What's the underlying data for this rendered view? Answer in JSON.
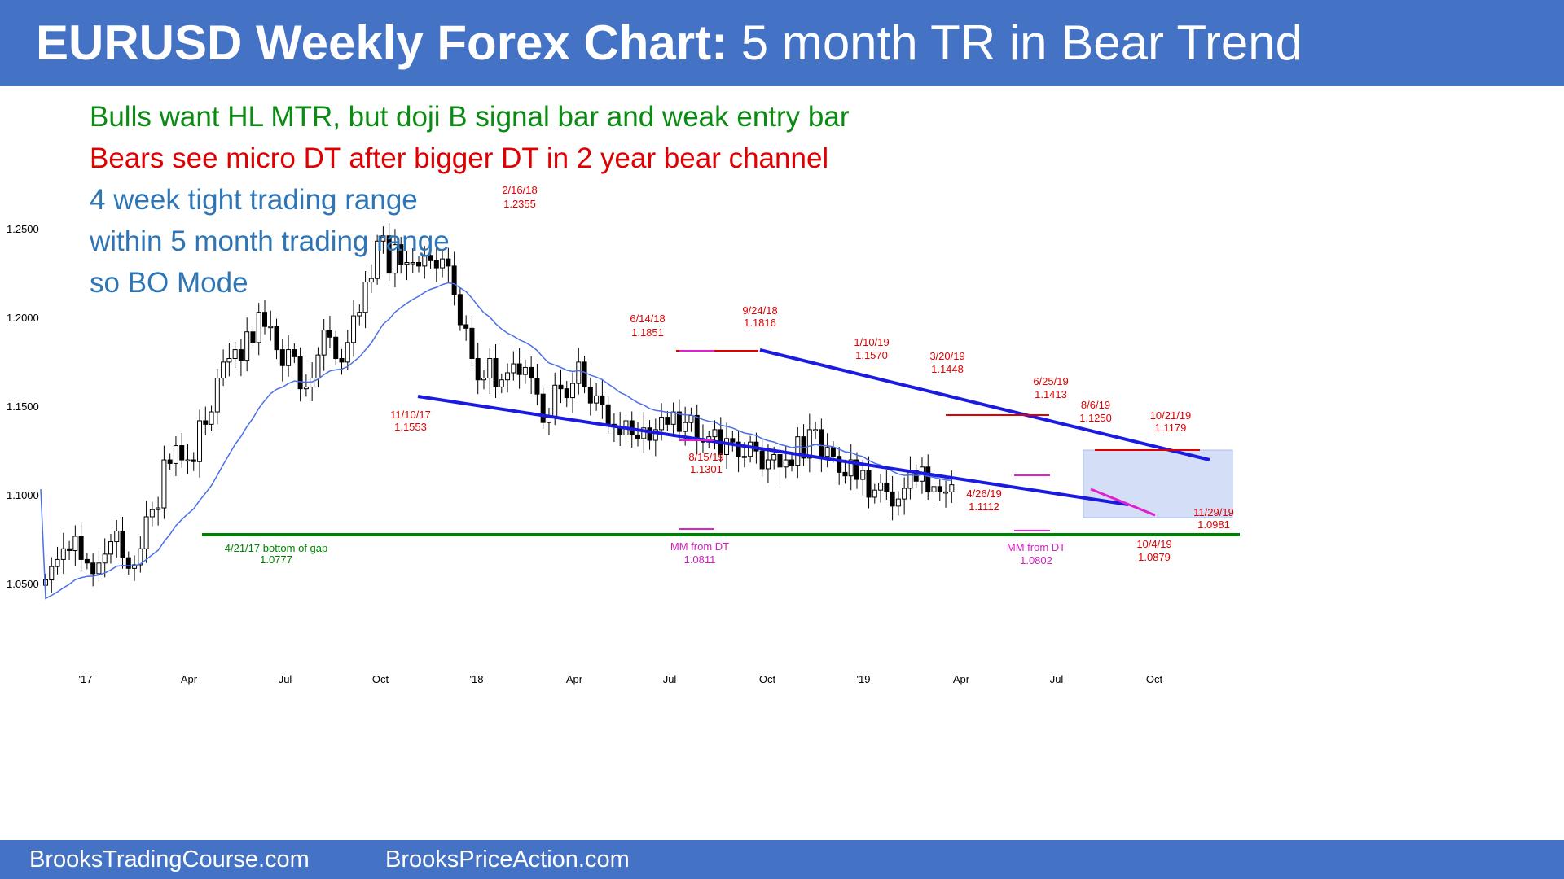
{
  "header": {
    "title_bold": "EURUSD Weekly Forex Chart:",
    "title_rest": "5 month TR in Bear Trend"
  },
  "footer": {
    "left": "BrooksTradingCourse.com",
    "right": "BrooksPriceAction.com"
  },
  "notes": [
    {
      "text": "Bulls want HL MTR, but doji B signal bar and weak entry bar",
      "color": "#0b8a14"
    },
    {
      "text": "Bears see micro DT after bigger DT in 2 year bear channel",
      "color": "#e00000"
    },
    {
      "text": "4 week tight trading range",
      "color": "#2e75b6"
    },
    {
      "text": "within 5 month trading range",
      "color": "#2e75b6"
    },
    {
      "text": "so BO Mode",
      "color": "#2e75b6"
    }
  ],
  "colors": {
    "bull_body": "#ffffff",
    "bear_body": "#000000",
    "ema": "#4a6fe8",
    "channel": "#1a1ae0",
    "resistance": "#e00000",
    "magenta": "#e020d0",
    "support": "#008000",
    "box": "#a9bff0",
    "red_text": "#e00000",
    "magenta_text": "#d020c0",
    "green_text": "#008000"
  },
  "chart_data": {
    "type": "candlestick",
    "title": "EURUSD Weekly Forex Chart: 5 month TR in Bear Trend",
    "y_ticks": [
      "1.2500",
      "1.2000",
      "1.1500",
      "1.1000",
      "1.0500"
    ],
    "x_ticks": [
      "'17",
      "Apr",
      "Jul",
      "Oct",
      "'18",
      "Apr",
      "Jul",
      "Oct",
      "'19",
      "Apr",
      "Jul",
      "Oct"
    ],
    "ylim": [
      1.025,
      1.265
    ],
    "grid": false,
    "moving_average": "20-week EMA",
    "key_points": [
      {
        "date": "12/30/16",
        "close": 1.0525
      },
      {
        "date": "1/6/17",
        "close": 1.06
      },
      {
        "date": "1/13/17",
        "close": 1.064
      },
      {
        "date": "1/20/17",
        "close": 1.07
      },
      {
        "date": "1/27/17",
        "close": 1.069
      },
      {
        "date": "2/3/17",
        "close": 1.077
      },
      {
        "date": "2/10/17",
        "close": 1.064
      },
      {
        "date": "2/17/17",
        "close": 1.062
      },
      {
        "date": "2/24/17",
        "close": 1.056
      },
      {
        "date": "3/3/17",
        "close": 1.062
      },
      {
        "date": "3/10/17",
        "close": 1.067
      },
      {
        "date": "3/17/17",
        "close": 1.074
      },
      {
        "date": "3/24/17",
        "close": 1.08
      },
      {
        "date": "3/31/17",
        "close": 1.065
      },
      {
        "date": "4/7/17",
        "close": 1.059
      },
      {
        "date": "4/14/17",
        "close": 1.061
      },
      {
        "date": "4/21/17",
        "close": 1.07
      },
      {
        "date": "4/28/17",
        "close": 1.088
      },
      {
        "date": "5/5/17",
        "close": 1.092
      },
      {
        "date": "5/12/17",
        "close": 1.093
      },
      {
        "date": "5/19/17",
        "close": 1.12
      },
      {
        "date": "5/26/17",
        "close": 1.118
      },
      {
        "date": "6/2/17",
        "close": 1.128
      },
      {
        "date": "6/9/17",
        "close": 1.12
      },
      {
        "date": "6/16/17",
        "close": 1.12
      },
      {
        "date": "6/23/17",
        "close": 1.119
      },
      {
        "date": "6/30/17",
        "close": 1.142
      },
      {
        "date": "7/7/17",
        "close": 1.14
      },
      {
        "date": "7/14/17",
        "close": 1.147
      },
      {
        "date": "7/21/17",
        "close": 1.166
      },
      {
        "date": "7/28/17",
        "close": 1.175
      },
      {
        "date": "8/4/17",
        "close": 1.177
      },
      {
        "date": "8/11/17",
        "close": 1.182
      },
      {
        "date": "8/18/17",
        "close": 1.176
      },
      {
        "date": "8/25/17",
        "close": 1.192
      },
      {
        "date": "9/1/17",
        "close": 1.186
      },
      {
        "date": "9/8/17",
        "close": 1.203
      },
      {
        "date": "9/15/17",
        "close": 1.195
      },
      {
        "date": "9/22/17",
        "close": 1.195
      },
      {
        "date": "9/29/17",
        "close": 1.182
      },
      {
        "date": "10/6/17",
        "close": 1.173
      },
      {
        "date": "10/13/17",
        "close": 1.182
      },
      {
        "date": "10/20/17",
        "close": 1.178
      },
      {
        "date": "10/27/17",
        "close": 1.16
      },
      {
        "date": "11/3/17",
        "close": 1.161
      },
      {
        "date": "11/10/17",
        "close": 1.166
      },
      {
        "date": "11/17/17",
        "close": 1.179
      },
      {
        "date": "11/24/17",
        "close": 1.193
      },
      {
        "date": "12/1/17",
        "close": 1.189
      },
      {
        "date": "12/8/17",
        "close": 1.177
      },
      {
        "date": "12/15/17",
        "close": 1.175
      },
      {
        "date": "12/22/17",
        "close": 1.186
      },
      {
        "date": "12/29/17",
        "close": 1.201
      },
      {
        "date": "1/5/18",
        "close": 1.203
      },
      {
        "date": "1/12/18",
        "close": 1.22
      },
      {
        "date": "1/19/18",
        "close": 1.222
      },
      {
        "date": "1/26/18",
        "close": 1.243
      },
      {
        "date": "2/2/18",
        "close": 1.246
      },
      {
        "date": "2/9/18",
        "close": 1.225
      },
      {
        "date": "2/16/18",
        "close": 1.241
      },
      {
        "date": "2/23/18",
        "close": 1.23
      },
      {
        "date": "3/2/18",
        "close": 1.231
      },
      {
        "date": "3/9/18",
        "close": 1.231
      },
      {
        "date": "3/16/18",
        "close": 1.229
      },
      {
        "date": "3/23/18",
        "close": 1.235
      },
      {
        "date": "3/30/18",
        "close": 1.232
      },
      {
        "date": "4/6/18",
        "close": 1.228
      },
      {
        "date": "4/13/18",
        "close": 1.233
      },
      {
        "date": "4/20/18",
        "close": 1.229
      },
      {
        "date": "4/27/18",
        "close": 1.213
      },
      {
        "date": "5/4/18",
        "close": 1.196
      },
      {
        "date": "5/11/18",
        "close": 1.194
      },
      {
        "date": "5/18/18",
        "close": 1.177
      },
      {
        "date": "5/25/18",
        "close": 1.165
      },
      {
        "date": "6/1/18",
        "close": 1.166
      },
      {
        "date": "6/8/18",
        "close": 1.177
      },
      {
        "date": "6/15/18",
        "close": 1.161
      },
      {
        "date": "6/22/18",
        "close": 1.165
      },
      {
        "date": "6/29/18",
        "close": 1.169
      },
      {
        "date": "7/6/18",
        "close": 1.174
      },
      {
        "date": "7/13/18",
        "close": 1.168
      },
      {
        "date": "7/20/18",
        "close": 1.172
      },
      {
        "date": "7/27/18",
        "close": 1.166
      },
      {
        "date": "8/3/18",
        "close": 1.157
      },
      {
        "date": "8/10/18",
        "close": 1.141
      },
      {
        "date": "8/17/18",
        "close": 1.144
      },
      {
        "date": "8/24/18",
        "close": 1.162
      },
      {
        "date": "8/31/18",
        "close": 1.16
      },
      {
        "date": "9/7/18",
        "close": 1.155
      },
      {
        "date": "9/14/18",
        "close": 1.163
      },
      {
        "date": "9/21/18",
        "close": 1.175
      },
      {
        "date": "9/28/18",
        "close": 1.161
      },
      {
        "date": "10/5/18",
        "close": 1.152
      },
      {
        "date": "10/12/18",
        "close": 1.156
      },
      {
        "date": "10/19/18",
        "close": 1.151
      },
      {
        "date": "10/26/18",
        "close": 1.14
      },
      {
        "date": "11/2/18",
        "close": 1.139
      },
      {
        "date": "11/9/18",
        "close": 1.134
      },
      {
        "date": "11/16/18",
        "close": 1.142
      },
      {
        "date": "11/23/18",
        "close": 1.134
      },
      {
        "date": "11/30/18",
        "close": 1.132
      },
      {
        "date": "12/7/18",
        "close": 1.138
      },
      {
        "date": "12/14/18",
        "close": 1.131
      },
      {
        "date": "12/21/18",
        "close": 1.137
      },
      {
        "date": "12/28/18",
        "close": 1.144
      },
      {
        "date": "1/4/19",
        "close": 1.14
      },
      {
        "date": "1/11/19",
        "close": 1.147
      },
      {
        "date": "1/18/19",
        "close": 1.136
      },
      {
        "date": "1/25/19",
        "close": 1.141
      },
      {
        "date": "2/1/19",
        "close": 1.145
      },
      {
        "date": "2/8/19",
        "close": 1.132
      },
      {
        "date": "2/15/19",
        "close": 1.13
      },
      {
        "date": "2/22/19",
        "close": 1.133
      },
      {
        "date": "3/1/19",
        "close": 1.137
      },
      {
        "date": "3/8/19",
        "close": 1.123
      },
      {
        "date": "3/15/19",
        "close": 1.132
      },
      {
        "date": "3/22/19",
        "close": 1.13
      },
      {
        "date": "3/29/19",
        "close": 1.122
      },
      {
        "date": "4/5/19",
        "close": 1.122
      },
      {
        "date": "4/12/19",
        "close": 1.13
      },
      {
        "date": "4/19/19",
        "close": 1.125
      },
      {
        "date": "4/26/19",
        "close": 1.115
      },
      {
        "date": "5/3/19",
        "close": 1.12
      },
      {
        "date": "5/10/19",
        "close": 1.123
      },
      {
        "date": "5/17/19",
        "close": 1.116
      },
      {
        "date": "5/24/19",
        "close": 1.12
      },
      {
        "date": "5/31/19",
        "close": 1.117
      },
      {
        "date": "6/7/19",
        "close": 1.133
      },
      {
        "date": "6/14/19",
        "close": 1.121
      },
      {
        "date": "6/21/19",
        "close": 1.137
      },
      {
        "date": "6/28/19",
        "close": 1.137
      },
      {
        "date": "7/5/19",
        "close": 1.122
      },
      {
        "date": "7/12/19",
        "close": 1.127
      },
      {
        "date": "7/19/19",
        "close": 1.122
      },
      {
        "date": "7/26/19",
        "close": 1.113
      },
      {
        "date": "8/2/19",
        "close": 1.111
      },
      {
        "date": "8/9/19",
        "close": 1.12
      },
      {
        "date": "8/16/19",
        "close": 1.109
      },
      {
        "date": "8/23/19",
        "close": 1.114
      },
      {
        "date": "8/30/19",
        "close": 1.099
      },
      {
        "date": "9/6/19",
        "close": 1.103
      },
      {
        "date": "9/13/19",
        "close": 1.107
      },
      {
        "date": "9/20/19",
        "close": 1.102
      },
      {
        "date": "9/27/19",
        "close": 1.094
      },
      {
        "date": "10/4/19",
        "close": 1.098
      },
      {
        "date": "10/11/19",
        "close": 1.104
      },
      {
        "date": "10/18/19",
        "close": 1.114
      },
      {
        "date": "10/25/19",
        "close": 1.108
      },
      {
        "date": "11/1/19",
        "close": 1.116
      },
      {
        "date": "11/8/19",
        "close": 1.102
      },
      {
        "date": "11/15/19",
        "close": 1.105
      },
      {
        "date": "11/22/19",
        "close": 1.102
      },
      {
        "date": "11/29/19",
        "close": 1.102
      },
      {
        "date": "12/6/19",
        "close": 1.106
      }
    ],
    "annotations": [
      {
        "date": "2/16/18",
        "price": "1.2355",
        "color": "red"
      },
      {
        "date": "6/14/18",
        "price": "1.1851",
        "color": "red"
      },
      {
        "date": "9/24/18",
        "price": "1.1816",
        "color": "red"
      },
      {
        "date": "1/10/19",
        "price": "1.1570",
        "color": "red"
      },
      {
        "date": "3/20/19",
        "price": "1.1448",
        "color": "red"
      },
      {
        "date": "6/25/19",
        "price": "1.1413",
        "color": "red"
      },
      {
        "date": "8/6/19",
        "price": "1.1250",
        "color": "red"
      },
      {
        "date": "10/21/19",
        "price": "1.1179",
        "color": "red"
      },
      {
        "date": "11/10/17",
        "price": "1.1553",
        "color": "red"
      },
      {
        "date": "8/15/19",
        "price": "1.1301",
        "color": "red"
      },
      {
        "date": "4/26/19",
        "price": "1.1112",
        "color": "red"
      },
      {
        "date": "11/29/19",
        "price": "1.0981",
        "color": "red"
      },
      {
        "date": "10/4/19",
        "price": "1.0879",
        "color": "red"
      },
      {
        "date": "4/21/17 bottom of gap",
        "price": "1.0777",
        "color": "green"
      },
      {
        "date": "MM from DT",
        "price": "1.0811",
        "color": "magenta"
      },
      {
        "date": "MM from DT",
        "price": "1.0802",
        "color": "magenta"
      }
    ]
  }
}
